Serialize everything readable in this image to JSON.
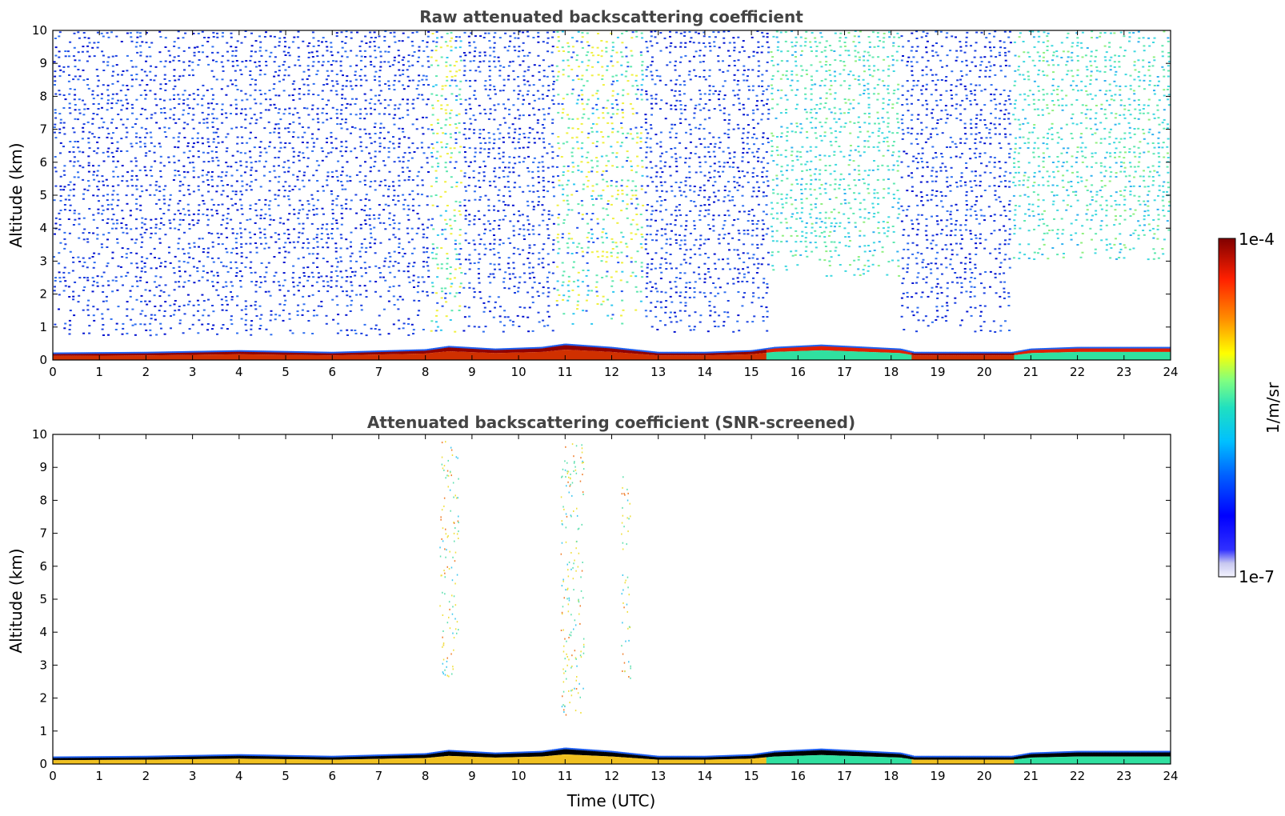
{
  "chart_data": [
    {
      "type": "heatmap",
      "title": "Raw attenuated backscattering coefficient",
      "xlabel": "",
      "ylabel": "Altitude (km)",
      "xlim": [
        0,
        24
      ],
      "ylim": [
        0,
        10
      ],
      "xticks": [
        "0",
        "1",
        "2",
        "3",
        "4",
        "5",
        "6",
        "7",
        "8",
        "9",
        "10",
        "11",
        "12",
        "13",
        "14",
        "15",
        "16",
        "17",
        "18",
        "19",
        "20",
        "21",
        "22",
        "23",
        "24"
      ],
      "yticks": [
        "0",
        "1",
        "2",
        "3",
        "4",
        "5",
        "6",
        "7",
        "8",
        "9",
        "10"
      ],
      "grid": false,
      "boundary_layer_top_km": [
        [
          0,
          0.18
        ],
        [
          2,
          0.2
        ],
        [
          4,
          0.25
        ],
        [
          6,
          0.2
        ],
        [
          8,
          0.28
        ],
        [
          8.5,
          0.38
        ],
        [
          9.5,
          0.3
        ],
        [
          10.5,
          0.35
        ],
        [
          11,
          0.45
        ],
        [
          12,
          0.35
        ],
        [
          13,
          0.2
        ],
        [
          14,
          0.2
        ],
        [
          15,
          0.25
        ],
        [
          15.5,
          0.35
        ],
        [
          16.5,
          0.42
        ],
        [
          17.5,
          0.35
        ],
        [
          18.2,
          0.3
        ],
        [
          18.5,
          0.2
        ],
        [
          20,
          0.2
        ],
        [
          20.6,
          0.2
        ],
        [
          21,
          0.3
        ],
        [
          22,
          0.35
        ],
        [
          23,
          0.35
        ],
        [
          24,
          0.35
        ]
      ],
      "noise_region": {
        "segments": [
          {
            "x": [
              0,
              8.1
            ],
            "bottom_km": 0.7,
            "top_km": 10,
            "level": "blue"
          },
          {
            "x": [
              8.1,
              8.8
            ],
            "bottom_km": 0.8,
            "top_km": 10,
            "level": "cyan-yellow"
          },
          {
            "x": [
              8.8,
              10.8
            ],
            "bottom_km": 0.8,
            "top_km": 10,
            "level": "blue"
          },
          {
            "x": [
              10.8,
              12.7
            ],
            "bottom_km": 1.0,
            "top_km": 10,
            "level": "cyan-yellow"
          },
          {
            "x": [
              12.7,
              15.4
            ],
            "bottom_km": 0.8,
            "top_km": 10,
            "level": "blue"
          },
          {
            "x": [
              15.4,
              18.2
            ],
            "bottom_km": 2.5,
            "top_km": 10,
            "level": "cyan-green"
          },
          {
            "x": [
              18.2,
              20.6
            ],
            "bottom_km": 0.8,
            "top_km": 10,
            "level": "blue"
          },
          {
            "x": [
              20.6,
              24
            ],
            "bottom_km": 3.0,
            "top_km": 10,
            "level": "cyan-green"
          }
        ]
      }
    },
    {
      "type": "heatmap",
      "title": "Attenuated backscattering coefficient (SNR-screened)",
      "xlabel": "Time (UTC)",
      "ylabel": "Altitude (km)",
      "xlim": [
        0,
        24
      ],
      "ylim": [
        0,
        10
      ],
      "xticks": [
        "0",
        "1",
        "2",
        "3",
        "4",
        "5",
        "6",
        "7",
        "8",
        "9",
        "10",
        "11",
        "12",
        "13",
        "14",
        "15",
        "16",
        "17",
        "18",
        "19",
        "20",
        "21",
        "22",
        "23",
        "24"
      ],
      "yticks": [
        "0",
        "1",
        "2",
        "3",
        "4",
        "5",
        "6",
        "7",
        "8",
        "9",
        "10"
      ],
      "grid": false,
      "boundary_layer_top_km": [
        [
          0,
          0.18
        ],
        [
          2,
          0.2
        ],
        [
          4,
          0.25
        ],
        [
          6,
          0.2
        ],
        [
          8,
          0.28
        ],
        [
          8.5,
          0.38
        ],
        [
          9.5,
          0.3
        ],
        [
          10.5,
          0.35
        ],
        [
          11,
          0.45
        ],
        [
          12,
          0.35
        ],
        [
          13,
          0.2
        ],
        [
          14,
          0.2
        ],
        [
          15,
          0.25
        ],
        [
          15.5,
          0.35
        ],
        [
          16.5,
          0.42
        ],
        [
          17.5,
          0.35
        ],
        [
          18.2,
          0.3
        ],
        [
          18.5,
          0.2
        ],
        [
          20,
          0.2
        ],
        [
          20.6,
          0.2
        ],
        [
          21,
          0.3
        ],
        [
          22,
          0.35
        ],
        [
          23,
          0.35
        ],
        [
          24,
          0.35
        ]
      ],
      "sparse_cloud_columns": [
        {
          "x": [
            8.3,
            8.7
          ],
          "bottom_km": 2.6,
          "top_km": 9.8
        },
        {
          "x": [
            10.9,
            11.4
          ],
          "bottom_km": 1.5,
          "top_km": 9.9
        },
        {
          "x": [
            12.2,
            12.4
          ],
          "bottom_km": 2.5,
          "top_km": 8.8
        }
      ]
    }
  ],
  "colorbar": {
    "label": "1/m/sr",
    "max_label": "1e-4",
    "min_label": "1e-7",
    "scale": "log",
    "colormap_stops": [
      "#f4f4ff",
      "#c8c8f0",
      "#0000ff",
      "#0060ff",
      "#00c0ff",
      "#20e0c0",
      "#80ff80",
      "#ffff00",
      "#ff9000",
      "#ff2000",
      "#800000"
    ]
  },
  "colors": {
    "blue_noise": "#1f4fe0",
    "cyan": "#40d8e0",
    "green": "#20e0a0",
    "yellow": "#f0f040",
    "red": "#d02000",
    "dark_red": "#900000"
  }
}
